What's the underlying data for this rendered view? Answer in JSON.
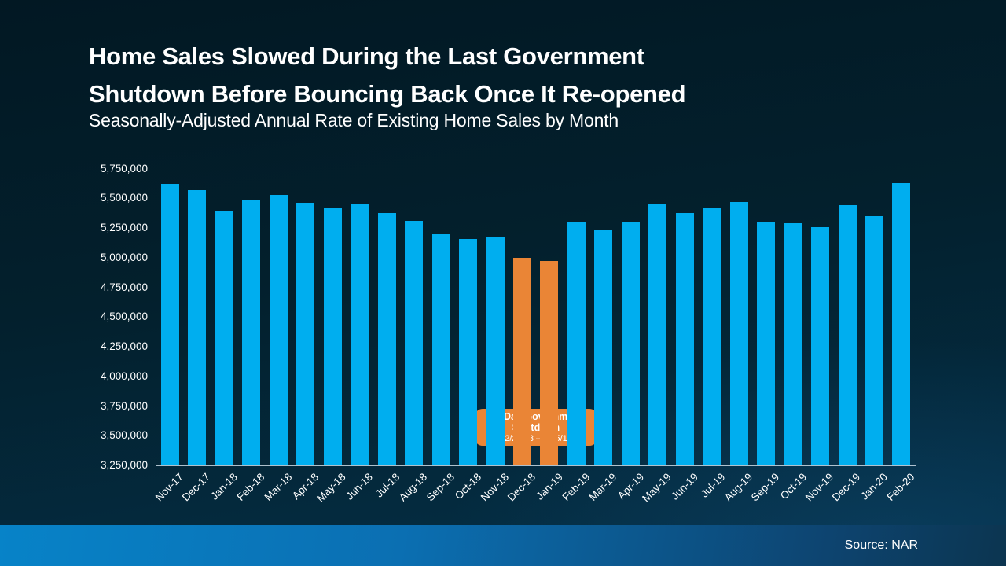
{
  "header": {
    "title_line1": "Home Sales Slowed During the Last Government",
    "title_line2": "Shutdown Before Bouncing Back Once It Re-opened",
    "subtitle": "Seasonally-Adjusted Annual Rate of Existing Home Sales by Month"
  },
  "chart_data": {
    "type": "bar",
    "title": "Home Sales Slowed During the Last Government Shutdown Before Bouncing Back Once It Re-opened",
    "subtitle": "Seasonally-Adjusted Annual Rate of Existing Home Sales by Month",
    "categories": [
      "Nov-17",
      "Dec-17",
      "Jan-18",
      "Feb-18",
      "Mar-18",
      "Apr-18",
      "May-18",
      "Jun-18",
      "Jul-18",
      "Aug-18",
      "Sep-18",
      "Oct-18",
      "Nov-18",
      "Dec-18",
      "Jan-19",
      "Feb-19",
      "Mar-19",
      "Apr-19",
      "May-19",
      "Jun-19",
      "Jul-19",
      "Aug-19",
      "Sep-19",
      "Oct-19",
      "Nov-19",
      "Dec-19",
      "Jan-20",
      "Feb-20"
    ],
    "values": [
      5620000,
      5570000,
      5400000,
      5480000,
      5530000,
      5460000,
      5420000,
      5450000,
      5380000,
      5310000,
      5200000,
      5160000,
      5180000,
      5000000,
      4970000,
      5300000,
      5240000,
      5300000,
      5450000,
      5380000,
      5420000,
      5470000,
      5300000,
      5290000,
      5260000,
      5440000,
      5350000,
      5630000
    ],
    "highlighted_categories": [
      "Dec-18",
      "Jan-19"
    ],
    "bar_color": "#00aeef",
    "highlight_color": "#ea8536",
    "ylim": [
      3250000,
      5750000
    ],
    "ytick_step": 250000,
    "ytick_labels": [
      "5,750,000",
      "5,500,000",
      "5,250,000",
      "5,000,000",
      "4,750,000",
      "4,500,000",
      "4,250,000",
      "4,000,000",
      "3,750,000",
      "3,500,000",
      "3,250,000"
    ],
    "grid": false,
    "legend": false,
    "annotation": {
      "line1": "35-Day Government Shutdown",
      "line2": "12/22/18 – 1/25/19"
    }
  },
  "footer": {
    "source_label": "Source: NAR"
  }
}
